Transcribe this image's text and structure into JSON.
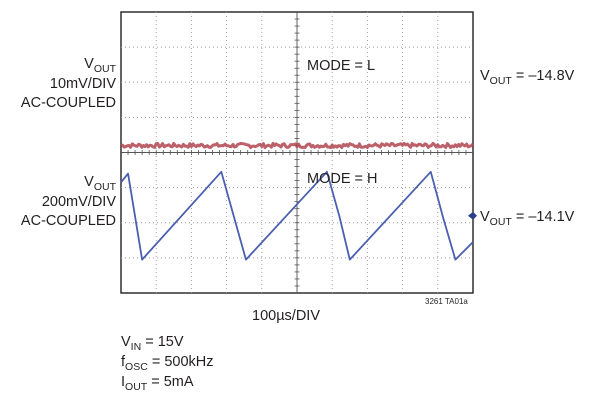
{
  "chart_data": {
    "type": "line",
    "xlabel": "100µs/DIV",
    "figure_id": "3261 TA01a",
    "grid": true,
    "x_divisions": 10,
    "y_divisions": 8,
    "panels": [
      {
        "name": "top",
        "left_label": {
          "base": "V",
          "sub": "OUT",
          "line2": "10mV/DIV",
          "line3": "AC-COUPLED"
        },
        "mode_label": "MODE = L",
        "right_label": {
          "base": "V",
          "sub": "OUT",
          "value": " = –14.8V"
        },
        "y_div_value": "10mV",
        "series": [
          {
            "color": "#b04450",
            "x": [
              0,
              10
            ],
            "y_div": [
              -1.8,
              -1.8
            ],
            "noise_div": 0.06
          }
        ]
      },
      {
        "name": "bottom",
        "left_label": {
          "base": "V",
          "sub": "OUT",
          "line2": "200mV/DIV",
          "line3": "AC-COUPLED"
        },
        "mode_label": "MODE = H",
        "right_label": {
          "base": "V",
          "sub": "OUT",
          "value": " = –14.1V"
        },
        "y_div_value": "200mV",
        "series": [
          {
            "color": "#4a5fb0",
            "x": [
              0,
              0.2,
              0.6,
              2.85,
              3.2,
              3.55,
              5.85,
              6.2,
              6.5,
              8.8,
              9.15,
              9.5,
              10
            ],
            "y_div": [
              1.15,
              1.4,
              -1.05,
              1.45,
              0.2,
              -1.05,
              1.45,
              0.2,
              -1.05,
              1.45,
              0.15,
              -1.05,
              -0.55
            ]
          }
        ]
      }
    ],
    "conditions": [
      {
        "base": "V",
        "sub": "IN",
        "value": " = 15V"
      },
      {
        "base": "f",
        "sub": "OSC",
        "value": " = 500kHz"
      },
      {
        "base": "I",
        "sub": "OUT",
        "value": " = 5mA"
      }
    ]
  }
}
